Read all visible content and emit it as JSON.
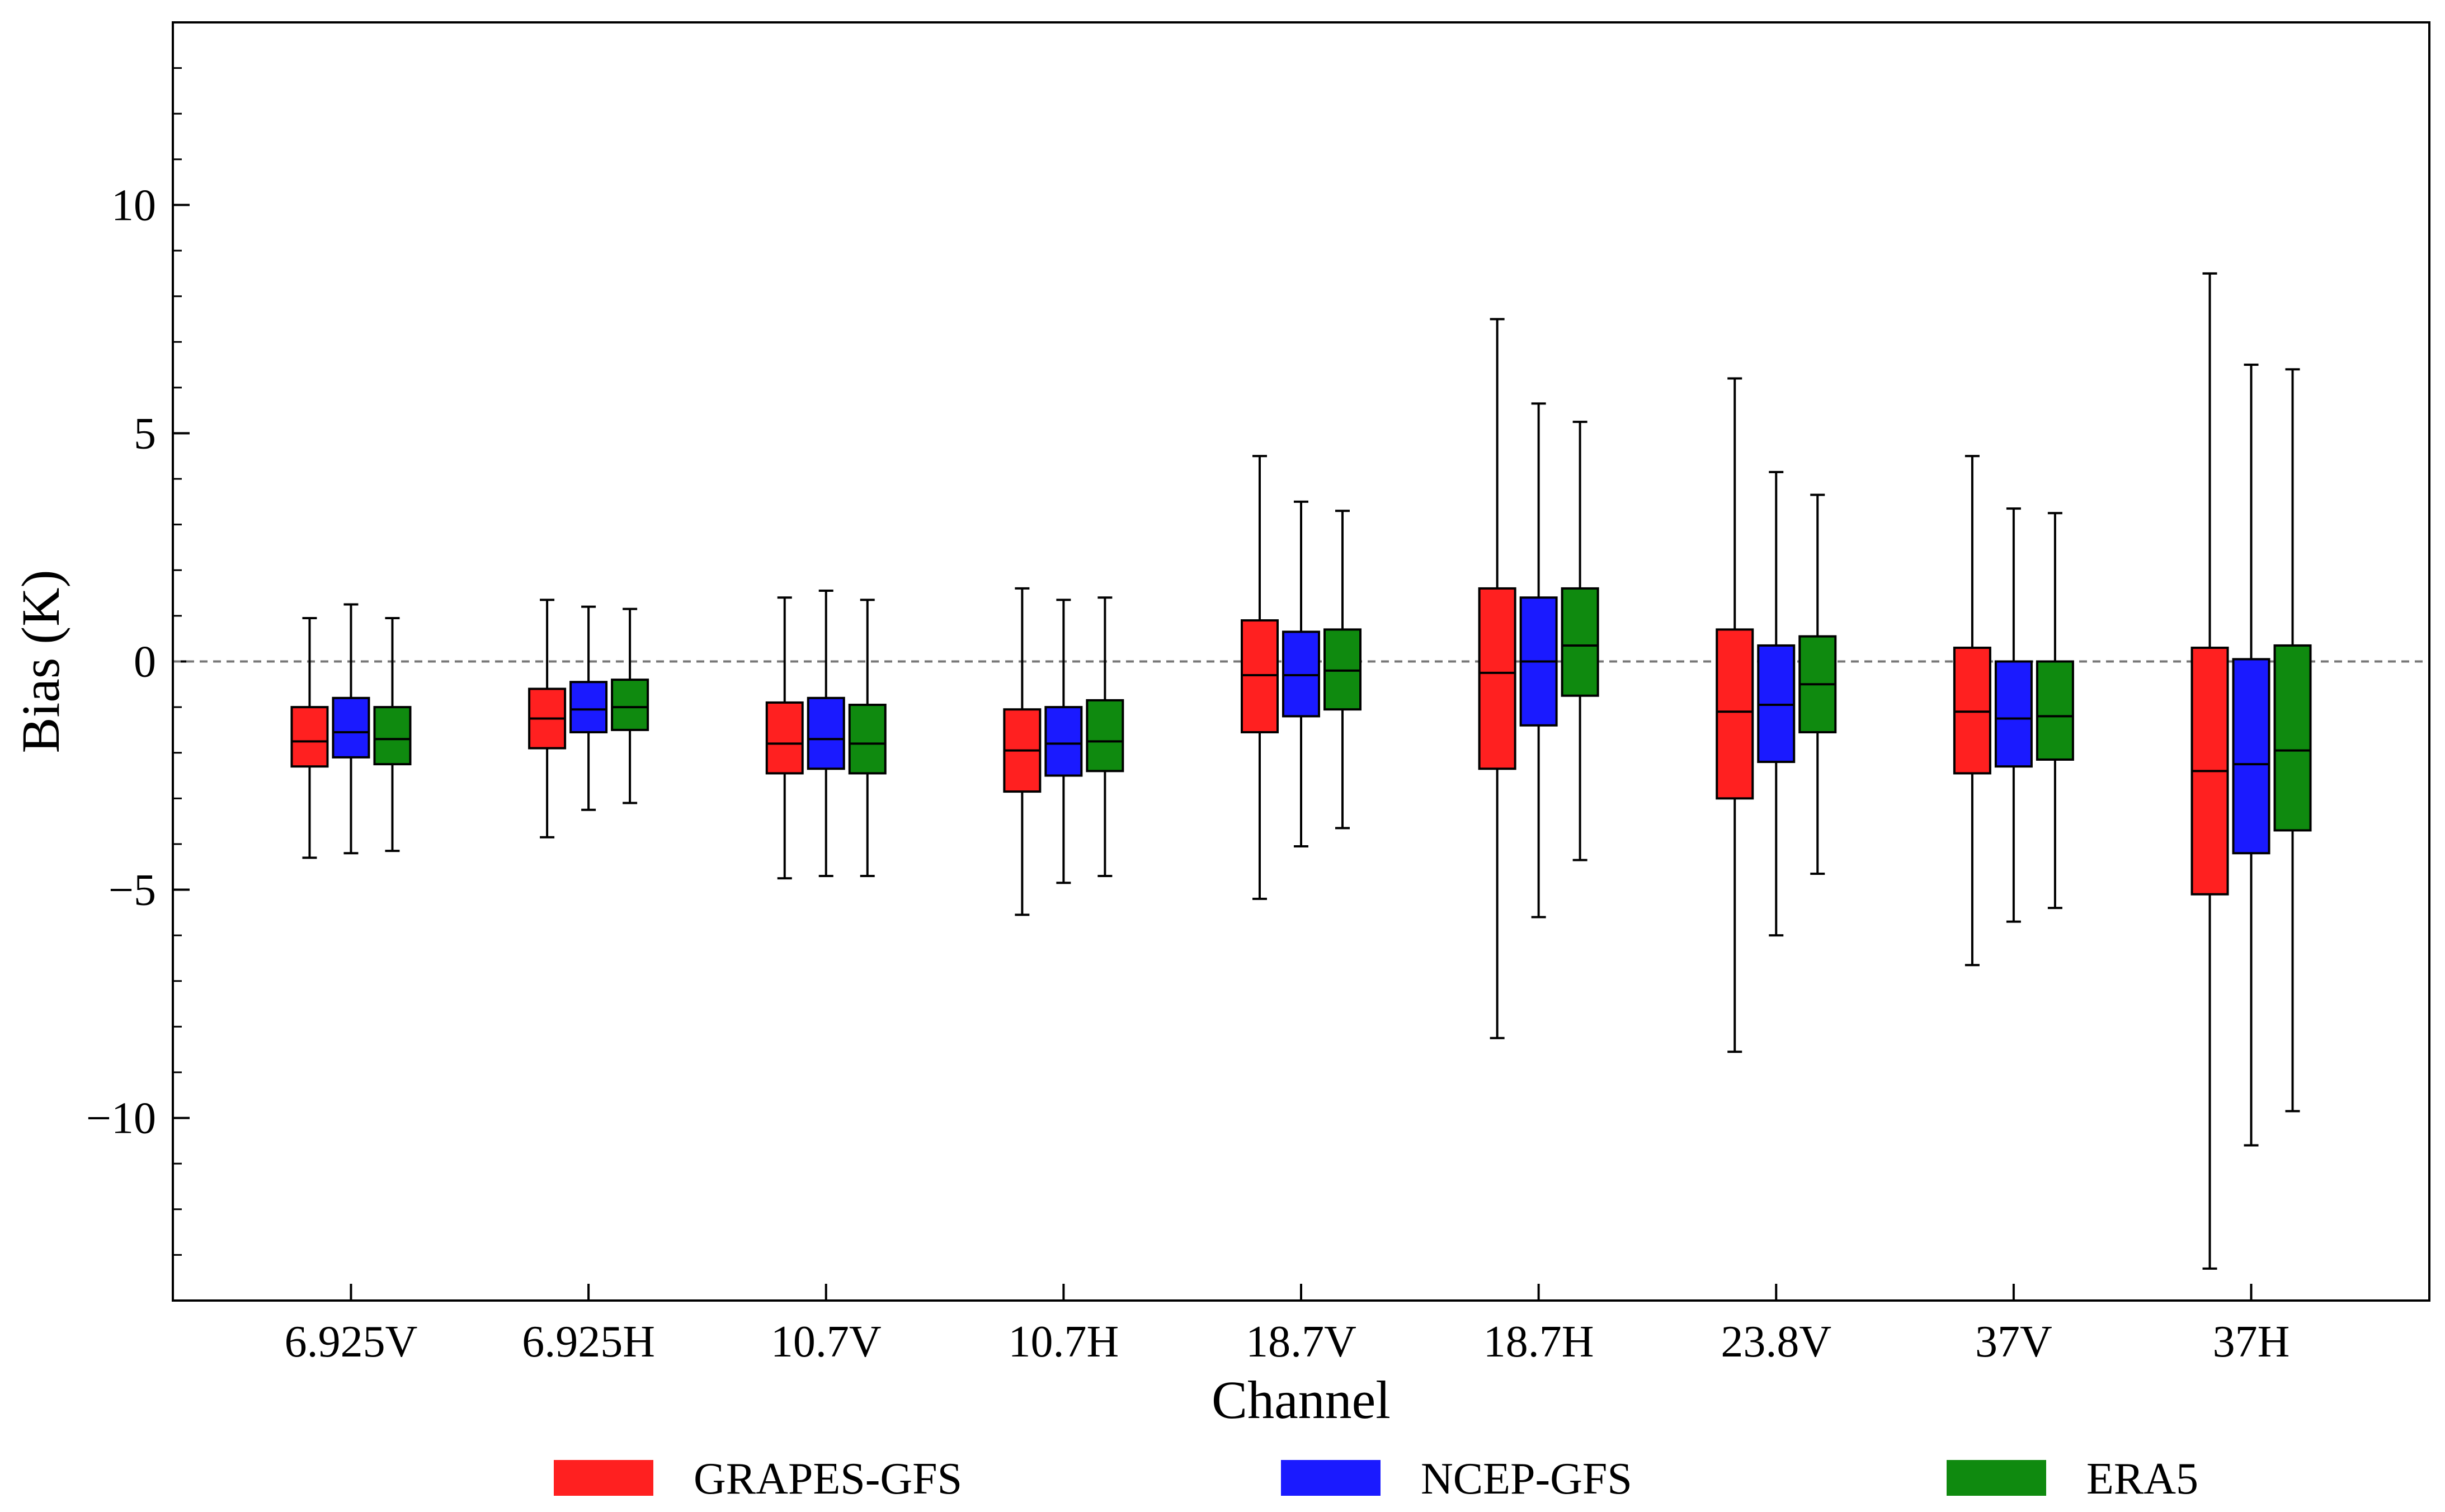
{
  "chart_data": {
    "type": "box",
    "xlabel": "Channel",
    "ylabel": "Bias (K)",
    "ylim": [
      -14,
      14
    ],
    "yticks": [
      -10,
      -5,
      0,
      5,
      10
    ],
    "ytick_labels": [
      "−10",
      "−5",
      "0",
      "5",
      "10"
    ],
    "reference_line": 0,
    "categories": [
      "6.925V",
      "6.925H",
      "10.7V",
      "10.7H",
      "18.7V",
      "18.7H",
      "23.8V",
      "37V",
      "37H"
    ],
    "series": [
      {
        "name": "GRAPES-GFS",
        "color": "#ff2020",
        "boxes": [
          {
            "whislo": -4.3,
            "q1": -2.3,
            "med": -1.75,
            "q3": -1.0,
            "whishi": 0.95
          },
          {
            "whislo": -3.85,
            "q1": -1.9,
            "med": -1.25,
            "q3": -0.6,
            "whishi": 1.35
          },
          {
            "whislo": -4.75,
            "q1": -2.45,
            "med": -1.8,
            "q3": -0.9,
            "whishi": 1.4
          },
          {
            "whislo": -5.55,
            "q1": -2.85,
            "med": -1.95,
            "q3": -1.05,
            "whishi": 1.6
          },
          {
            "whislo": -5.2,
            "q1": -1.55,
            "med": -0.3,
            "q3": 0.9,
            "whishi": 4.5
          },
          {
            "whislo": -8.25,
            "q1": -2.35,
            "med": -0.25,
            "q3": 1.6,
            "whishi": 7.5
          },
          {
            "whislo": -8.55,
            "q1": -3.0,
            "med": -1.1,
            "q3": 0.7,
            "whishi": 6.2
          },
          {
            "whislo": -6.65,
            "q1": -2.45,
            "med": -1.1,
            "q3": 0.3,
            "whishi": 4.5
          },
          {
            "whislo": -13.3,
            "q1": -5.1,
            "med": -2.4,
            "q3": 0.3,
            "whishi": 8.5
          }
        ]
      },
      {
        "name": "NCEP-GFS",
        "color": "#1a1aff",
        "boxes": [
          {
            "whislo": -4.2,
            "q1": -2.1,
            "med": -1.55,
            "q3": -0.8,
            "whishi": 1.25
          },
          {
            "whislo": -3.25,
            "q1": -1.55,
            "med": -1.05,
            "q3": -0.45,
            "whishi": 1.2
          },
          {
            "whislo": -4.7,
            "q1": -2.35,
            "med": -1.7,
            "q3": -0.8,
            "whishi": 1.55
          },
          {
            "whislo": -4.85,
            "q1": -2.5,
            "med": -1.8,
            "q3": -1.0,
            "whishi": 1.35
          },
          {
            "whislo": -4.05,
            "q1": -1.2,
            "med": -0.3,
            "q3": 0.65,
            "whishi": 3.5
          },
          {
            "whislo": -5.6,
            "q1": -1.4,
            "med": 0.0,
            "q3": 1.4,
            "whishi": 5.65
          },
          {
            "whislo": -6.0,
            "q1": -2.2,
            "med": -0.95,
            "q3": 0.35,
            "whishi": 4.15
          },
          {
            "whislo": -5.7,
            "q1": -2.3,
            "med": -1.25,
            "q3": 0.0,
            "whishi": 3.35
          },
          {
            "whislo": -10.6,
            "q1": -4.2,
            "med": -2.25,
            "q3": 0.05,
            "whishi": 6.5
          }
        ]
      },
      {
        "name": "ERA5",
        "color": "#0f8a0f",
        "boxes": [
          {
            "whislo": -4.15,
            "q1": -2.25,
            "med": -1.7,
            "q3": -1.0,
            "whishi": 0.95
          },
          {
            "whislo": -3.1,
            "q1": -1.5,
            "med": -1.0,
            "q3": -0.4,
            "whishi": 1.15
          },
          {
            "whislo": -4.7,
            "q1": -2.45,
            "med": -1.8,
            "q3": -0.95,
            "whishi": 1.35
          },
          {
            "whislo": -4.7,
            "q1": -2.4,
            "med": -1.75,
            "q3": -0.85,
            "whishi": 1.4
          },
          {
            "whislo": -3.65,
            "q1": -1.05,
            "med": -0.2,
            "q3": 0.7,
            "whishi": 3.3
          },
          {
            "whislo": -4.35,
            "q1": -0.75,
            "med": 0.35,
            "q3": 1.6,
            "whishi": 5.25
          },
          {
            "whislo": -4.65,
            "q1": -1.55,
            "med": -0.5,
            "q3": 0.55,
            "whishi": 3.65
          },
          {
            "whislo": -5.4,
            "q1": -2.15,
            "med": -1.2,
            "q3": 0.0,
            "whishi": 3.25
          },
          {
            "whislo": -9.85,
            "q1": -3.7,
            "med": -1.95,
            "q3": 0.35,
            "whishi": 6.4
          }
        ]
      }
    ],
    "legend": {
      "position": "bottom",
      "entries": [
        "GRAPES-GFS",
        "NCEP-GFS",
        "ERA5"
      ]
    }
  }
}
